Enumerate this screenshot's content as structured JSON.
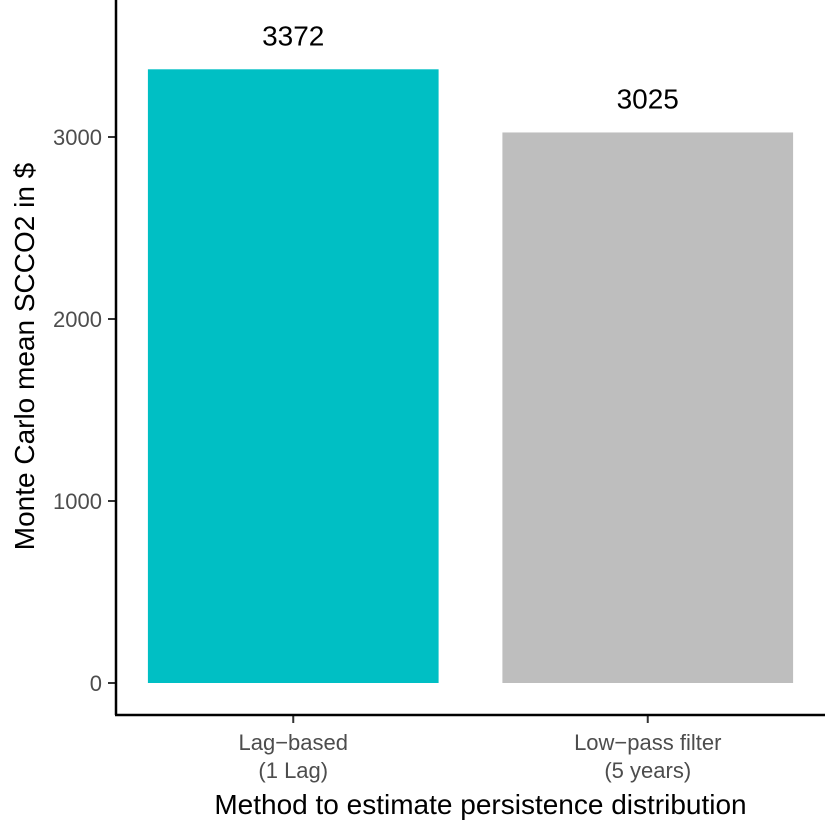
{
  "chart_data": {
    "type": "bar",
    "title": "",
    "xlabel": "Method to estimate persistence distribution",
    "ylabel": "Monte Carlo mean SCCO2 in $",
    "categories": [
      [
        "Lag−based",
        "(1 Lag)"
      ],
      [
        "Low−pass filter",
        "(5 years)"
      ]
    ],
    "values": [
      3372,
      3025
    ],
    "value_labels": [
      "3372",
      "3025"
    ],
    "colors": [
      "#00BFC4",
      "#BEBEBE"
    ],
    "y_ticks": [
      0,
      1000,
      2000,
      3000
    ],
    "y_tick_labels": [
      "0",
      "1000",
      "2000",
      "3000"
    ],
    "ylim": [
      -180,
      3720
    ],
    "grid": false,
    "legend": "none"
  }
}
